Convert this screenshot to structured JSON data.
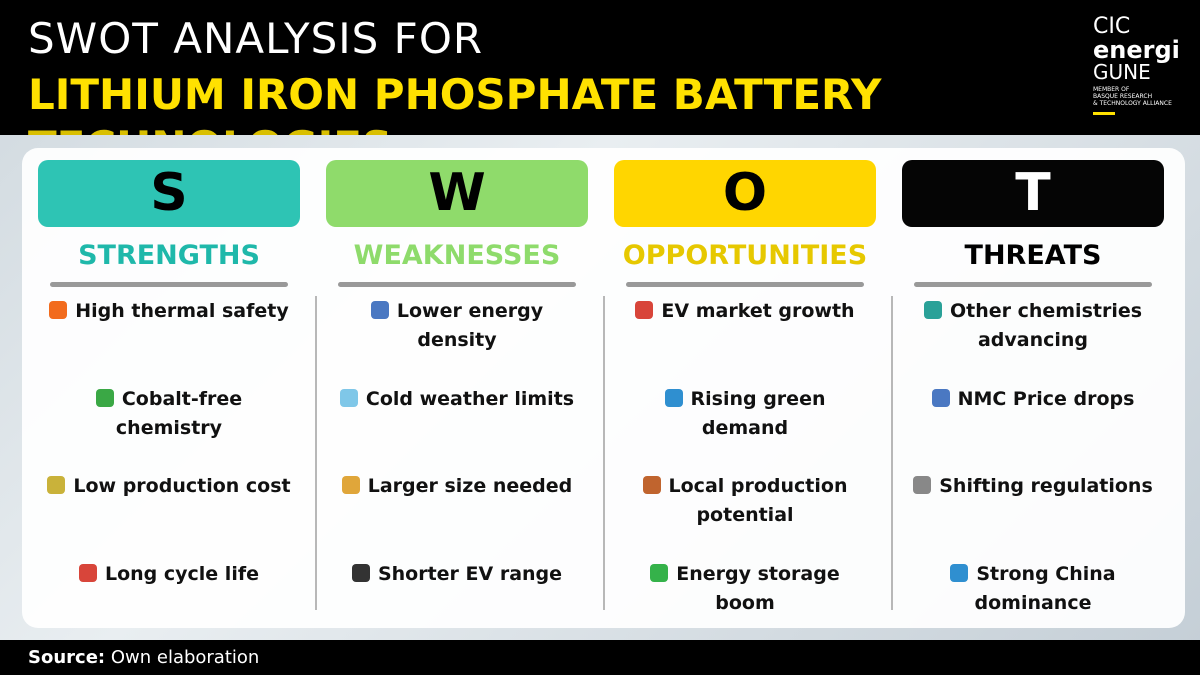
{
  "header": {
    "line1": "SWOT ANALYSIS FOR",
    "line2": "LITHIUM IRON PHOSPHATE BATTERY",
    "line3": "TECHNOLOGIES"
  },
  "logo": {
    "line1": "CIC",
    "line2": "energi",
    "line3": "GUNE",
    "tagline": [
      "MEMBER OF",
      "BASQUE RESEARCH",
      "& TECHNOLOGY ALLIANCE"
    ]
  },
  "columns": [
    {
      "letter": "S",
      "heading": "STRENGTHS",
      "color": "#2ec4b4",
      "headingColor": "#1fb8aa",
      "letterColor": "#000000",
      "items": [
        "High thermal  safety",
        "Cobalt-free chemistry",
        "Low production cost",
        "Long cycle life"
      ],
      "icons": [
        "#f26b1d",
        "#3aa845",
        "#c9b23a",
        "#d8453a"
      ]
    },
    {
      "letter": "W",
      "heading": "WEAKNESSES",
      "color": "#8fdb6b",
      "headingColor": "#8edb6b",
      "letterColor": "#000000",
      "items": [
        "Lower energy density",
        "Cold weather limits",
        "Larger size needed",
        "Shorter EV range"
      ],
      "icons": [
        "#4a78c2",
        "#7fc7e8",
        "#e0a63a",
        "#333333"
      ]
    },
    {
      "letter": "O",
      "heading": "OPPORTUNITIES",
      "color": "#ffd600",
      "headingColor": "#e6c800",
      "letterColor": "#000000",
      "items": [
        "EV market growth",
        "Rising green demand",
        "Local production potential",
        "Energy storage boom"
      ],
      "icons": [
        "#d8453a",
        "#2f8fd0",
        "#c0642e",
        "#35b24a"
      ]
    },
    {
      "letter": "T",
      "heading": "THREATS",
      "color": "#050505",
      "headingColor": "#000000",
      "letterColor": "#ffffff",
      "items": [
        "Other chemistries advancing",
        "NMC Price drops",
        "Shifting regulations",
        "Strong China dominance"
      ],
      "icons": [
        "#2aa198",
        "#4a78c2",
        "#888888",
        "#2f8fd0"
      ]
    }
  ],
  "footer": {
    "label": "Source:",
    "text": "Own elaboration"
  }
}
